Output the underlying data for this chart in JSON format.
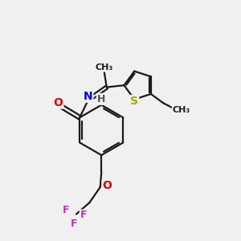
{
  "bg_color": "#f0f0f0",
  "bond_color": "#1a1a1a",
  "bond_width": 1.6,
  "atom_colors": {
    "O": "#dd0000",
    "N": "#0000cc",
    "S": "#aaaa00",
    "F": "#bb33bb",
    "H": "#555555",
    "C": "#1a1a1a"
  },
  "font_size_atom": 10,
  "font_size_small": 9
}
